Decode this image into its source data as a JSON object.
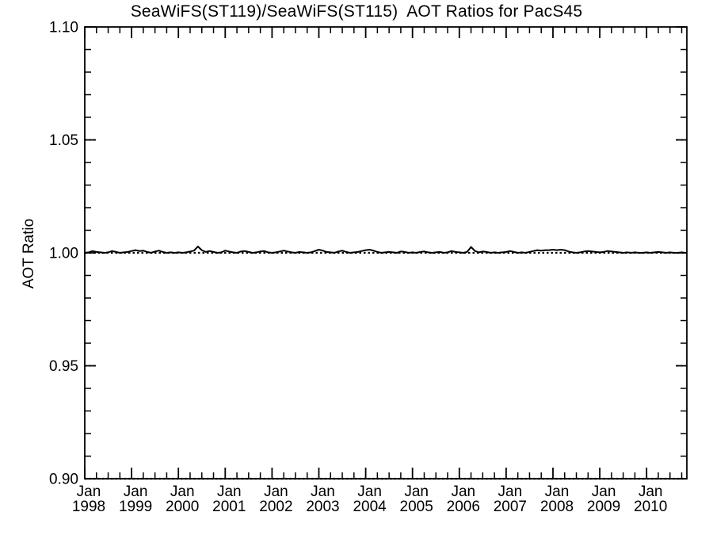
{
  "chart_data": {
    "type": "line",
    "title": "SeaWiFS(ST119)/SeaWiFS(ST115)  AOT Ratios for PacS45",
    "ylabel": "AOT Ratio",
    "xlabel": "",
    "background": "#ffffff",
    "axis_color": "#000000",
    "line_color": "#000000",
    "grid": "dotted-reference-lines",
    "legend": "none",
    "y_axis": {
      "range": [
        0.9,
        1.1
      ],
      "major_ticks": [
        0.9,
        0.95,
        1.0,
        1.05,
        1.1
      ],
      "tick_labels": [
        "0.90",
        "0.95",
        "1.00",
        "1.05",
        "1.10"
      ],
      "minor_step": 0.01,
      "grid_stub_values": [
        0.95,
        1.05
      ]
    },
    "x_axis": {
      "range_years": [
        1998.0,
        2010.86
      ],
      "month_label": "Jan",
      "years": [
        1998,
        1999,
        2000,
        2001,
        2002,
        2003,
        2004,
        2005,
        2006,
        2007,
        2008,
        2009,
        2010
      ],
      "minor_step_years": 0.25
    },
    "reference_lines": [
      {
        "value": 1.0,
        "style": "dotted"
      },
      {
        "value": 0.9,
        "style": "dotted"
      }
    ],
    "series": [
      {
        "name": "SeaWiFS(ST119)/SeaWiFS(ST115) AOT ratio",
        "start_year": 1998.0,
        "step_months": 1,
        "values": [
          1.0,
          1.0002,
          1.0008,
          1.0004,
          1.0002,
          1.0,
          1.0002,
          1.0008,
          1.0004,
          1.0,
          1.0002,
          1.0004,
          1.0008,
          1.0012,
          1.0008,
          1.001,
          1.0004,
          1.0,
          1.0006,
          1.001,
          1.0004,
          1.0,
          1.0002,
          1.0,
          1.0002,
          1.0,
          1.0002,
          1.0006,
          1.001,
          1.0028,
          1.0012,
          1.0004,
          1.0008,
          1.0004,
          1.0,
          1.0002,
          1.001,
          1.0006,
          1.0002,
          1.0,
          1.0006,
          1.0008,
          1.0004,
          1.0,
          1.0002,
          1.0006,
          1.0008,
          1.0002,
          1.0,
          1.0002,
          1.0006,
          1.001,
          1.0006,
          1.0002,
          1.0,
          1.0004,
          1.0002,
          1.0,
          1.0002,
          1.0008,
          1.0014,
          1.001,
          1.0004,
          1.0002,
          1.0,
          1.0006,
          1.001,
          1.0004,
          1.0,
          1.0002,
          1.0004,
          1.0008,
          1.0012,
          1.0014,
          1.001,
          1.0004,
          1.0,
          1.0002,
          1.0004,
          1.0002,
          1.0,
          1.0006,
          1.0004,
          1.0,
          1.0002,
          1.0,
          1.0004,
          1.0006,
          1.0002,
          1.0,
          1.0002,
          1.0004,
          1.0,
          1.0002,
          1.0008,
          1.0004,
          1.0002,
          1.0,
          1.0004,
          1.0026,
          1.0008,
          1.0002,
          1.0006,
          1.0004,
          1.0,
          1.0002,
          1.0,
          1.0002,
          1.0004,
          1.0008,
          1.0004,
          1.0,
          1.0002,
          1.0,
          1.0004,
          1.0008,
          1.0012,
          1.001,
          1.0012,
          1.0012,
          1.0014,
          1.0012,
          1.0014,
          1.0012,
          1.0006,
          1.0002,
          1.0,
          1.0002,
          1.0006,
          1.0008,
          1.0006,
          1.0004,
          1.0002,
          1.0004,
          1.0008,
          1.0006,
          1.0004,
          1.0002,
          1.0,
          1.0002,
          1.0,
          1.0002,
          1.0,
          1.0,
          1.0002,
          1.0,
          1.0002,
          1.0004,
          1.0002,
          1.0,
          1.0002,
          1.0,
          1.0,
          1.0002,
          1.0
        ]
      }
    ]
  }
}
